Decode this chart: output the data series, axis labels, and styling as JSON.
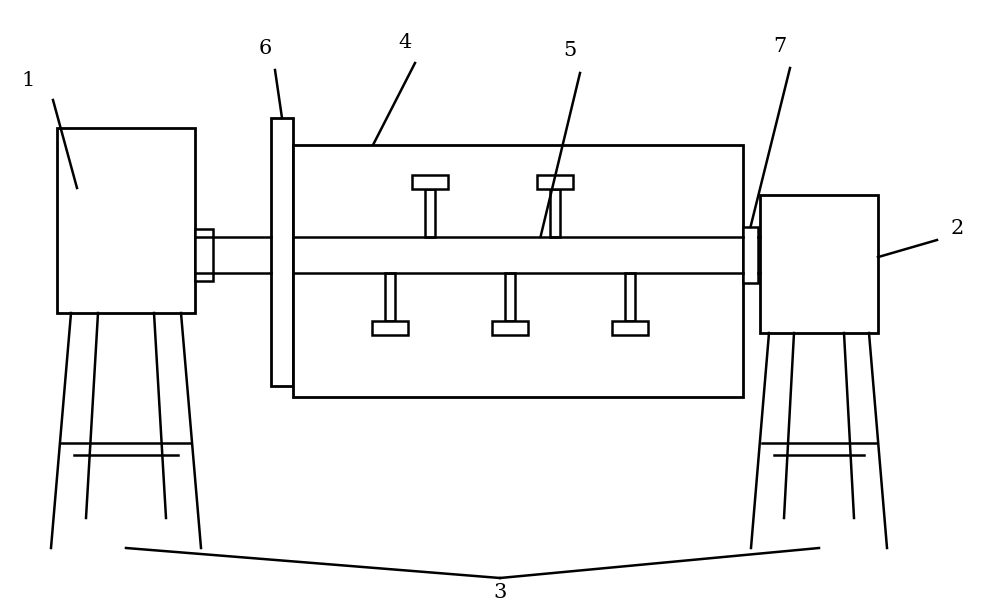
{
  "bg_color": "#ffffff",
  "line_color": "#000000",
  "lw": 1.8,
  "label_fontsize": 15
}
